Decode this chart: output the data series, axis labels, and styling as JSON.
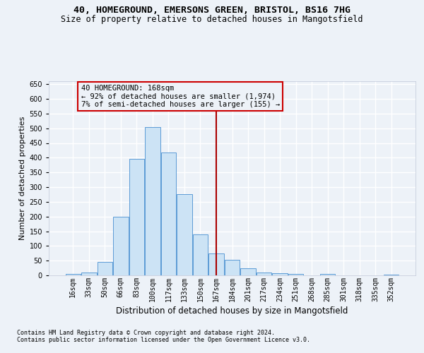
{
  "title1": "40, HOMEGROUND, EMERSONS GREEN, BRISTOL, BS16 7HG",
  "title2": "Size of property relative to detached houses in Mangotsfield",
  "xlabel": "Distribution of detached houses by size in Mangotsfield",
  "ylabel": "Number of detached properties",
  "categories": [
    "16sqm",
    "33sqm",
    "50sqm",
    "66sqm",
    "83sqm",
    "100sqm",
    "117sqm",
    "133sqm",
    "150sqm",
    "167sqm",
    "184sqm",
    "201sqm",
    "217sqm",
    "234sqm",
    "251sqm",
    "268sqm",
    "285sqm",
    "301sqm",
    "318sqm",
    "335sqm",
    "352sqm"
  ],
  "values": [
    4,
    10,
    45,
    200,
    395,
    505,
    418,
    275,
    140,
    75,
    52,
    23,
    10,
    8,
    6,
    0,
    5,
    0,
    0,
    0,
    2
  ],
  "bar_color": "#cce3f5",
  "bar_edge_color": "#5b9bd5",
  "vline_x_idx": 9,
  "vline_color": "#aa0000",
  "annotation_line1": "40 HOMEGROUND: 168sqm",
  "annotation_line2": "← 92% of detached houses are smaller (1,974)",
  "annotation_line3": "7% of semi-detached houses are larger (155) →",
  "annotation_box_color": "#cc0000",
  "ylim_max": 660,
  "yticks": [
    0,
    50,
    100,
    150,
    200,
    250,
    300,
    350,
    400,
    450,
    500,
    550,
    600,
    650
  ],
  "footnote1": "Contains HM Land Registry data © Crown copyright and database right 2024.",
  "footnote2": "Contains public sector information licensed under the Open Government Licence v3.0.",
  "bg_color": "#edf2f8",
  "grid_color": "#ffffff",
  "title_fontsize": 9.5,
  "subtitle_fontsize": 8.5,
  "ylabel_fontsize": 8,
  "xlabel_fontsize": 8.5,
  "tick_fontsize": 7,
  "footnote_fontsize": 6
}
